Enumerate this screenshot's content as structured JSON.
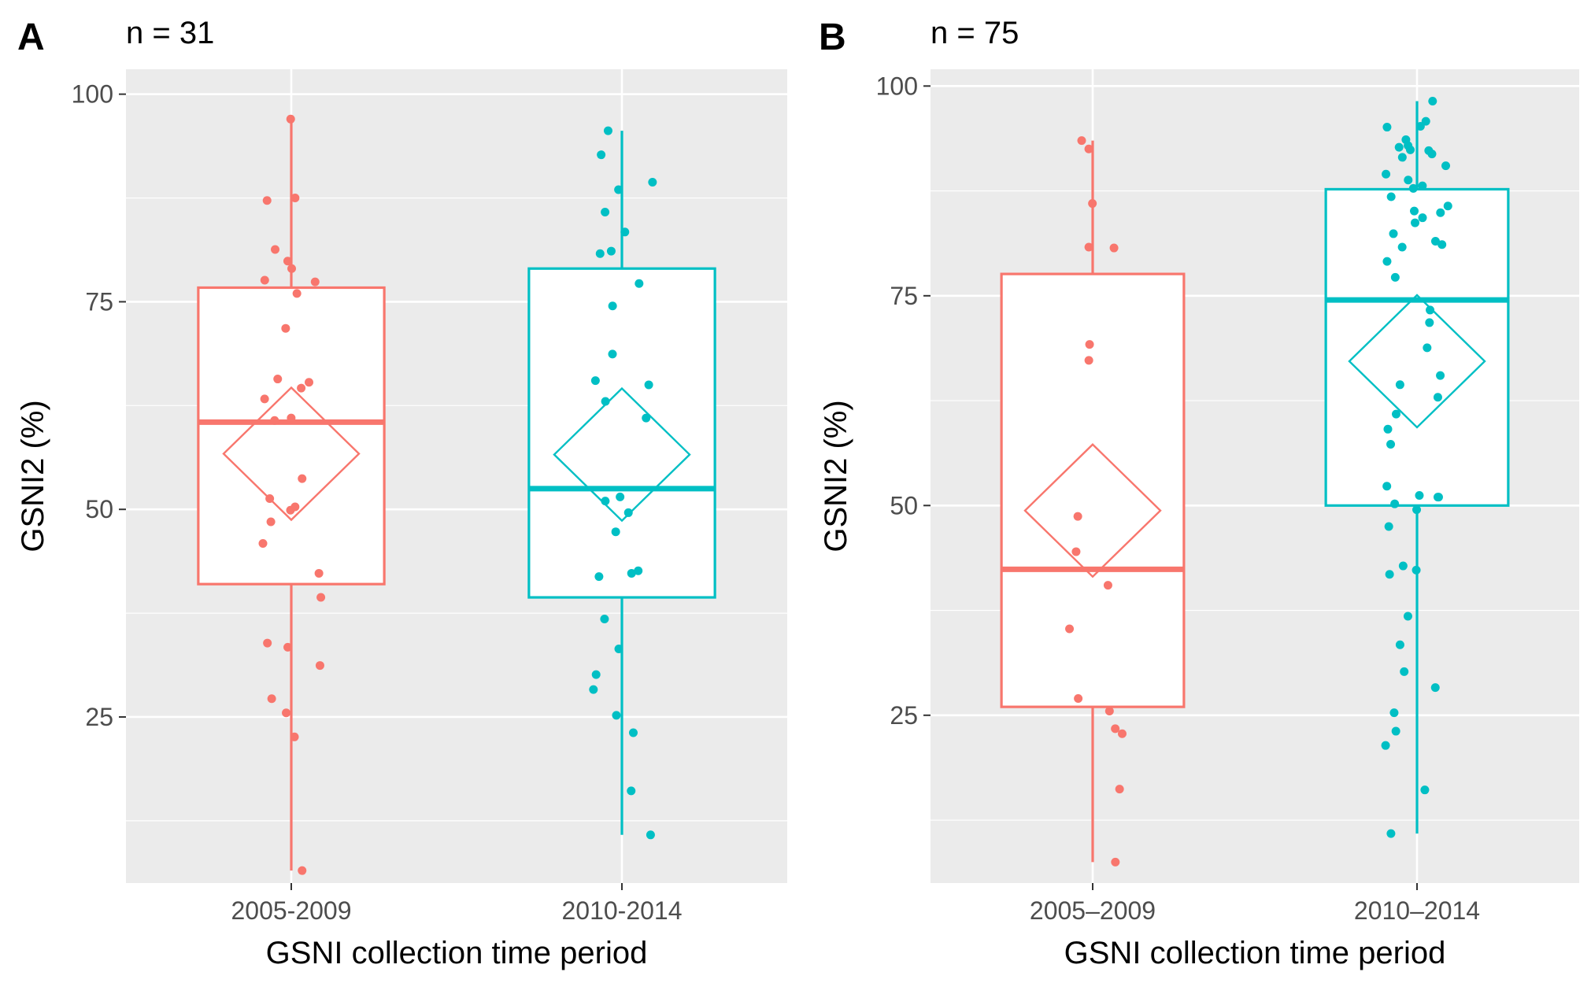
{
  "chart_data": [
    {
      "type": "box",
      "panel_label": "A",
      "n_label": "n =  31",
      "xlabel": "GSNI collection time period",
      "ylabel": "GSNI2 (%)",
      "ylim": [
        5,
        103
      ],
      "yticks": [
        25,
        50,
        75,
        100
      ],
      "grid": true,
      "categories": [
        "2005-2009",
        "2010-2014"
      ],
      "colors": [
        "#F8766D",
        "#00BFC4"
      ],
      "boxes": [
        {
          "category": "2005-2009",
          "whisker_low": 6.5,
          "q1": 41,
          "median": 60.5,
          "q3": 76.7,
          "whisker_high": 97,
          "mean": 56.7
        },
        {
          "category": "2010-2014",
          "whisker_low": 10.8,
          "q1": 39.4,
          "median": 52.5,
          "q3": 79,
          "whisker_high": 95.6,
          "mean": 56.6
        }
      ],
      "points": [
        {
          "category": "2005-2009",
          "values": [
            97,
            87.5,
            87.2,
            81.3,
            79.9,
            79,
            77.6,
            77.4,
            76,
            71.8,
            65.7,
            65.3,
            64.6,
            63.3,
            61,
            60.7,
            53.7,
            51.3,
            50.3,
            49.9,
            48.5,
            45.9,
            42.3,
            39.4,
            33.9,
            33.4,
            31.2,
            27.2,
            25.5,
            22.6,
            6.5
          ]
        },
        {
          "category": "2010-2014",
          "values": [
            95.6,
            92.7,
            89.4,
            88.5,
            85.8,
            83.4,
            81.1,
            80.8,
            77.2,
            74.5,
            68.7,
            65.5,
            65,
            63,
            61,
            51.5,
            51,
            49.6,
            47.3,
            42.6,
            42.3,
            41.9,
            36.8,
            33.2,
            30.1,
            28.3,
            25.2,
            23.1,
            16.1,
            10.8
          ]
        }
      ]
    },
    {
      "type": "box",
      "panel_label": "B",
      "n_label": "n =  75",
      "xlabel": "GSNI collection time period",
      "ylabel": "GSNI2 (%)",
      "ylim": [
        5,
        102
      ],
      "yticks": [
        25,
        50,
        75,
        100
      ],
      "grid": true,
      "categories": [
        "2005–2009",
        "2010–2014"
      ],
      "colors": [
        "#F8766D",
        "#00BFC4"
      ],
      "boxes": [
        {
          "category": "2005–2009",
          "whisker_low": 7.5,
          "q1": 26,
          "median": 42.4,
          "q3": 77.6,
          "whisker_high": 93.5,
          "mean": 49.4
        },
        {
          "category": "2010–2014",
          "whisker_low": 10.9,
          "q1": 50,
          "median": 74.5,
          "q3": 87.7,
          "whisker_high": 98.2,
          "mean": 67.2
        }
      ],
      "points": [
        {
          "category": "2005–2009",
          "values": [
            93.5,
            92.5,
            86,
            80.8,
            80.7,
            69.2,
            67.3,
            48.7,
            44.5,
            40.5,
            35.3,
            27,
            25.5,
            23.4,
            22.8,
            16.2,
            7.5
          ]
        },
        {
          "category": "2010–2014",
          "values": [
            98.2,
            95.8,
            95.2,
            95.1,
            93.6,
            92.9,
            92.7,
            92.4,
            92.3,
            91.9,
            91.5,
            90.5,
            89.5,
            88.8,
            88.1,
            87.8,
            86.8,
            85.7,
            85.1,
            84.9,
            84.3,
            83.7,
            82.4,
            81.5,
            81.1,
            80.8,
            79.1,
            77.2,
            73.3,
            71.8,
            68.8,
            65.5,
            64.4,
            62.9,
            60.9,
            59.1,
            57.3,
            52.3,
            51.2,
            51,
            51,
            50.2,
            49.5,
            47.5,
            42.8,
            42.3,
            41.8,
            36.8,
            33.4,
            30.2,
            28.3,
            25.3,
            23.1,
            21.4,
            16.1,
            10.9
          ]
        }
      ]
    }
  ]
}
